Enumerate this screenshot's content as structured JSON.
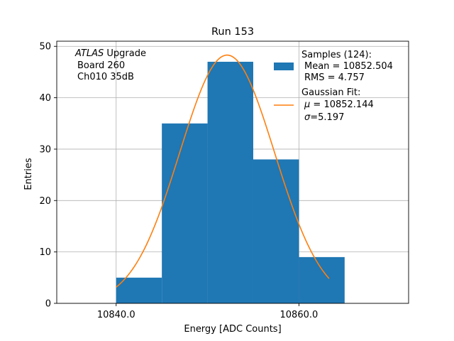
{
  "chart_data": {
    "type": "bar",
    "title": "Run 153",
    "xlabel": "Energy [ADC Counts]",
    "ylabel": "Entries",
    "xlim": [
      10833.5,
      10872.0
    ],
    "ylim": [
      0,
      51
    ],
    "grid": true,
    "xticks": [
      10840,
      10860
    ],
    "xtick_labels": [
      "10840.0",
      "10860.0"
    ],
    "yticks": [
      0,
      10,
      20,
      30,
      40,
      50
    ],
    "ytick_labels": [
      "0",
      "10",
      "20",
      "30",
      "40",
      "50"
    ],
    "histogram": {
      "bin_edges": [
        10840,
        10845,
        10850,
        10855,
        10860,
        10865
      ],
      "values": [
        5,
        35,
        47,
        28,
        9
      ],
      "color": "#1f77b4"
    },
    "fit": {
      "mu": 10852.144,
      "sigma": 5.197,
      "amplitude": 48.3,
      "x_range": [
        10840,
        10863.3
      ],
      "color": "#ff7f0e"
    },
    "annotation": {
      "atlas_label": "ATLAS",
      "atlas_suffix": " Upgrade",
      "line2": "Board 260",
      "line3": "Ch010 35dB"
    },
    "legend": {
      "placement": "top-right",
      "samples_title": "Samples (124):",
      "samples_mean": "Mean = 10852.504",
      "samples_rms": "RMS = 4.757",
      "fit_title": "Gaussian Fit:",
      "fit_mu_symbol": "μ",
      "fit_mu_value": " = 10852.144",
      "fit_sigma_symbol": "σ",
      "fit_sigma_value": "=5.197"
    }
  }
}
